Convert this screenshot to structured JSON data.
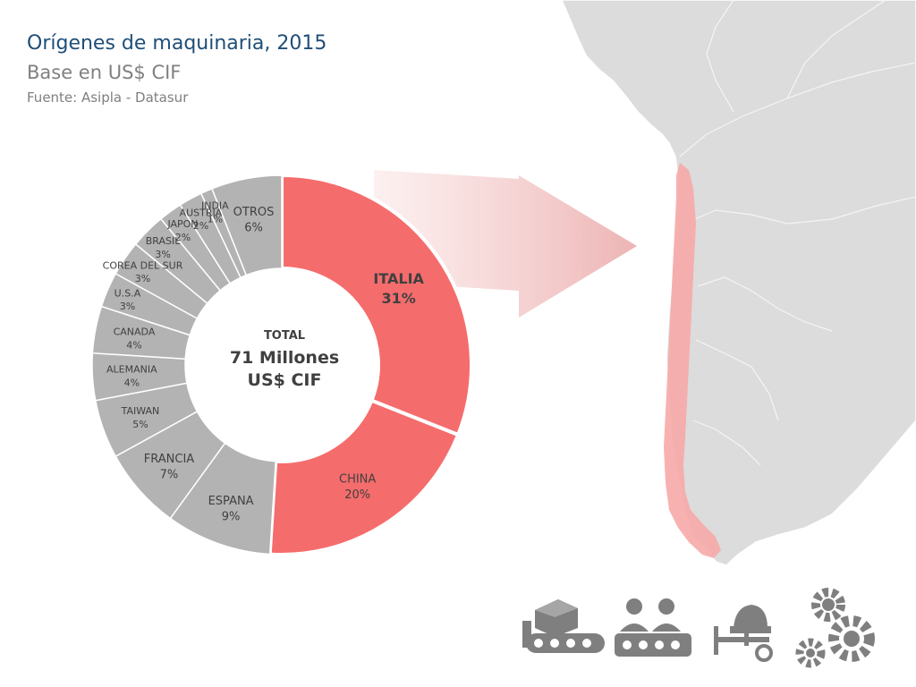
{
  "title": "Orígenes de maquinaria, 2015",
  "subtitle": "Base en US$ CIF",
  "source": "Fuente: Asipla - Datasur",
  "center": {
    "line1": "TOTAL",
    "line2": "71 Millones",
    "line3": "US$ CIF"
  },
  "colors": {
    "highlight": "#f56c6c",
    "other": "#b3b3b3",
    "map_land": "#d9d9d9",
    "chile": "#f7aaaa",
    "icons": "#7f7f7f"
  },
  "icons": [
    "conveyor-box-icon",
    "workers-icon",
    "cement-mixer-icon",
    "gears-icon"
  ],
  "chart_data": {
    "type": "pie",
    "style": "donut",
    "start": "top, clockwise",
    "slices": [
      {
        "label": "ITALIA",
        "value": 31,
        "text": "31%",
        "highlight": true
      },
      {
        "label": "CHINA",
        "value": 20,
        "text": "20%",
        "highlight": true
      },
      {
        "label": "ESPANA",
        "value": 9,
        "text": "9%",
        "highlight": false
      },
      {
        "label": "FRANCIA",
        "value": 7,
        "text": "7%",
        "highlight": false
      },
      {
        "label": "TAIWAN",
        "value": 5,
        "text": "5%",
        "highlight": false
      },
      {
        "label": "ALEMANIA",
        "value": 4,
        "text": "4%",
        "highlight": false
      },
      {
        "label": "CANADA",
        "value": 4,
        "text": "4%",
        "highlight": false
      },
      {
        "label": "U.S.A",
        "value": 3,
        "text": "3%",
        "highlight": false
      },
      {
        "label": "COREA DEL SUR",
        "value": 3,
        "text": "3%",
        "highlight": false
      },
      {
        "label": "BRASIL",
        "value": 3,
        "text": "3%",
        "highlight": false
      },
      {
        "label": "JAPON",
        "value": 2,
        "text": "2%",
        "highlight": false
      },
      {
        "label": "AUSTRIA",
        "value": 2,
        "text": "2%",
        "highlight": false
      },
      {
        "label": "INDIA",
        "value": 1,
        "text": "1%",
        "highlight": false
      },
      {
        "label": "OTROS",
        "value": 6,
        "text": "6%",
        "highlight": false
      }
    ]
  }
}
